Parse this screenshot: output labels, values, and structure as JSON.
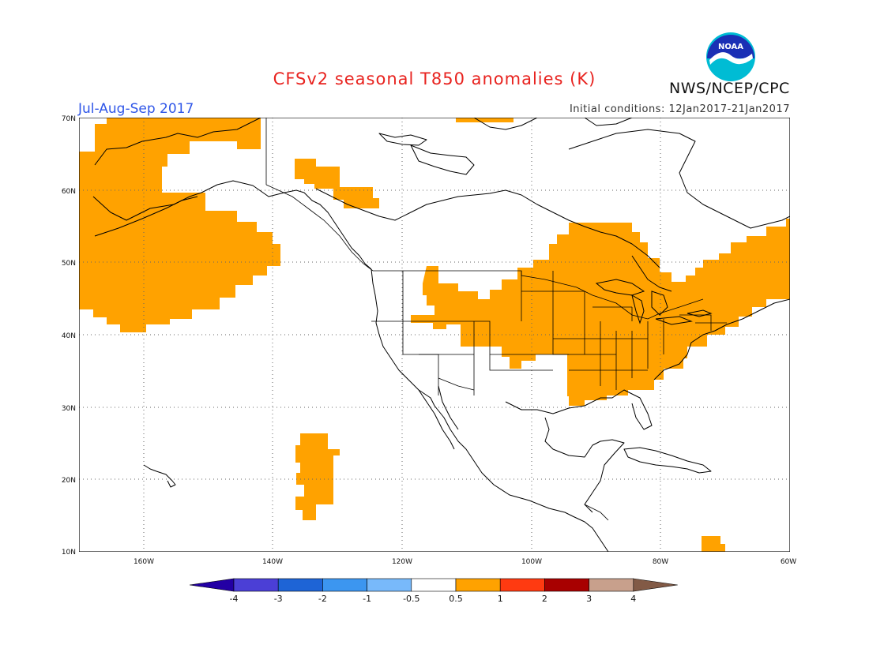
{
  "header": {
    "title": "CFSv2 seasonal T850 anomalies (K)",
    "season": "Jul-Aug-Sep 2017",
    "initial_conditions": "Initial conditions: 12Jan2017-21Jan2017",
    "agency": "NWS/NCEP/CPC",
    "logo_text": "NOAA"
  },
  "map": {
    "projection": "cylindrical",
    "lon_range": [
      -172,
      -60
    ],
    "lat_range": [
      10,
      70
    ],
    "lat_labels": [
      "70N",
      "60N",
      "50N",
      "40N",
      "30N",
      "20N",
      "10N"
    ],
    "lon_labels": [
      "160W",
      "140W",
      "120W",
      "100W",
      "80W",
      "60W"
    ],
    "grid": "dotted",
    "anomaly_color": "#ffa200",
    "anomaly_category": "0.5 to 1",
    "anomaly_regions": [
      "Gulf of Alaska and northeast Pacific",
      "Alaska",
      "Northwest Territories",
      "Northern Rockies",
      "Central and eastern United States",
      "Eastern Canada",
      "Subtropical eastern Pacific",
      "Northern South America"
    ]
  },
  "colorbar": {
    "labels": [
      "-4",
      "-3",
      "-2",
      "-1",
      "-0.5",
      "0.5",
      "1",
      "2",
      "3",
      "4"
    ],
    "colors": [
      "#2300a4",
      "#4b3fd6",
      "#1e64d6",
      "#3c96f0",
      "#78b9fa",
      "#ffffff",
      "#ffa200",
      "#ff3a11",
      "#a80000",
      "#c8a08c",
      "#825a46"
    ]
  }
}
